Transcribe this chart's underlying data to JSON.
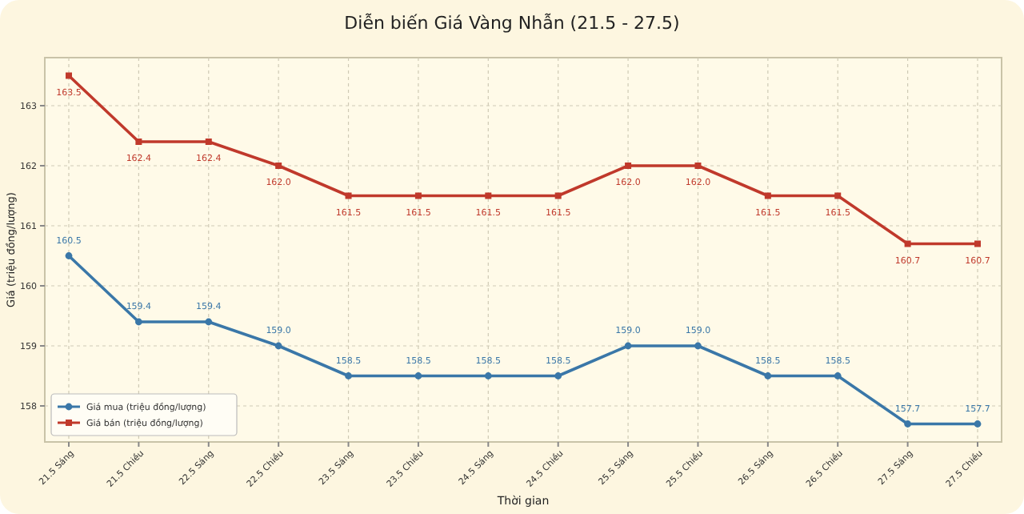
{
  "chart_data": {
    "type": "line",
    "title": "Diễn biến Giá Vàng Nhẫn (21.5 - 27.5)",
    "xlabel": "Thời gian",
    "ylabel": "Giá (triệu đồng/lượng)",
    "categories": [
      "21.5 Sáng",
      "21.5 Chiều",
      "22.5 Sáng",
      "22.5 Chiều",
      "23.5 Sáng",
      "23.5 Chiều",
      "24.5 Sáng",
      "24.5 Chiều",
      "25.5 Sáng",
      "25.5 Chiều",
      "26.5 Sáng",
      "26.5 Chiều",
      "27.5 Sáng",
      "27.5 Chiều"
    ],
    "series": [
      {
        "name": "Giá mua (triệu đồng/lượng)",
        "color": "#3a77a8",
        "marker": "circle",
        "values": [
          160.5,
          159.4,
          159.4,
          159.0,
          158.5,
          158.5,
          158.5,
          158.5,
          159.0,
          159.0,
          158.5,
          158.5,
          157.7,
          157.7
        ],
        "value_labels": [
          "160.5",
          "159.4",
          "159.4",
          "159.0",
          "158.5",
          "158.5",
          "158.5",
          "158.5",
          "159.0",
          "159.0",
          "158.5",
          "158.5",
          "157.7",
          "157.7"
        ]
      },
      {
        "name": "Giá bán (triệu đồng/lượng)",
        "color": "#c0392b",
        "marker": "square",
        "values": [
          163.5,
          162.4,
          162.4,
          162.0,
          161.5,
          161.5,
          161.5,
          161.5,
          162.0,
          162.0,
          161.5,
          161.5,
          160.7,
          160.7
        ],
        "value_labels": [
          "163.5",
          "162.4",
          "162.4",
          "162.0",
          "161.5",
          "161.5",
          "161.5",
          "161.5",
          "162.0",
          "162.0",
          "161.5",
          "161.5",
          "160.7",
          "160.7"
        ]
      }
    ],
    "ylim": [
      157.4,
      163.8
    ],
    "yticks": [
      158,
      159,
      160,
      161,
      162,
      163
    ],
    "grid": true,
    "legend": "bottom left",
    "line_style": "solid"
  }
}
